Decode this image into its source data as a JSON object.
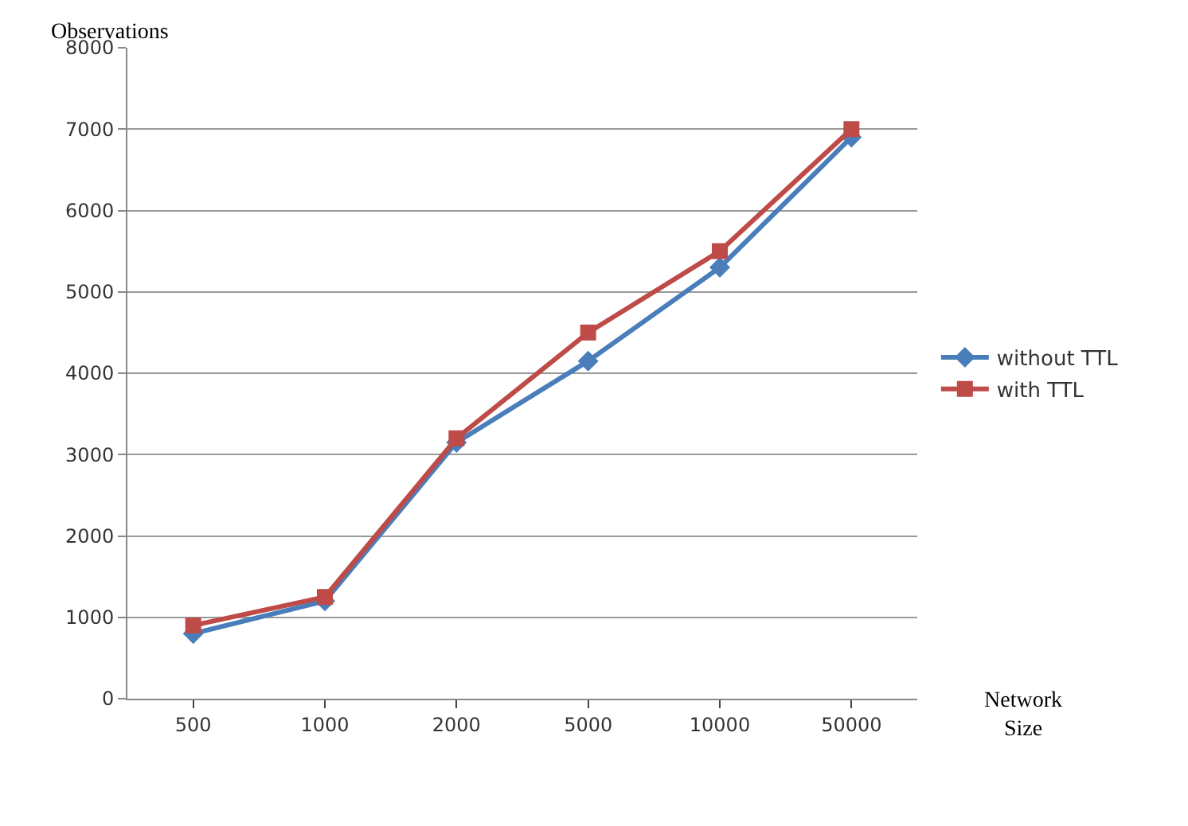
{
  "chart_data": {
    "type": "line",
    "xlabel": "Network\nSize",
    "ylabel": "Observations",
    "categories": [
      "500",
      "1000",
      "2000",
      "5000",
      "10000",
      "50000"
    ],
    "series": [
      {
        "name": "without TTL",
        "color": "#4a7ebb",
        "marker": "diamond",
        "values": [
          800,
          1200,
          3150,
          4150,
          5300,
          6900
        ]
      },
      {
        "name": "with TTL",
        "color": "#be4b48",
        "marker": "square",
        "values": [
          900,
          1250,
          3200,
          4500,
          5500,
          7000
        ]
      }
    ],
    "ylim": [
      0,
      8000
    ],
    "yticks": [
      0,
      1000,
      2000,
      3000,
      4000,
      5000,
      6000,
      7000,
      8000
    ],
    "grid": "y",
    "legend": "right"
  }
}
